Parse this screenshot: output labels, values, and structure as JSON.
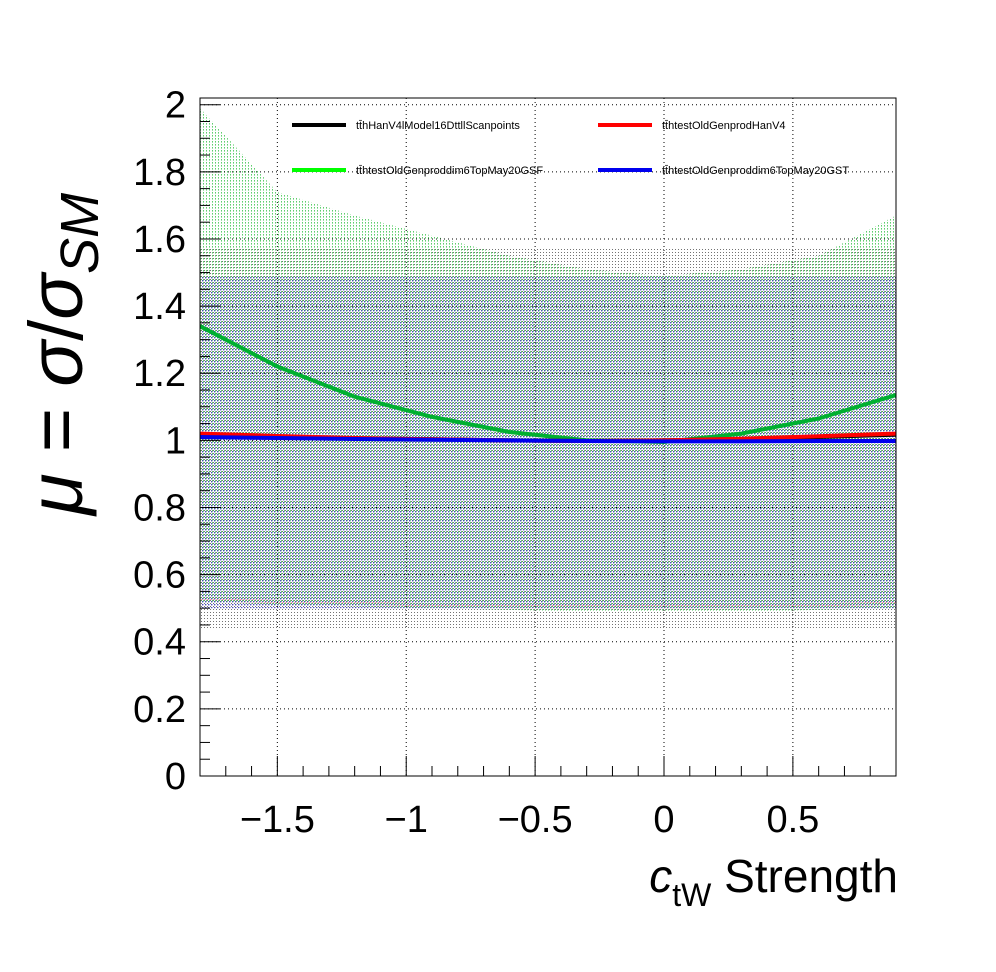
{
  "chart_data": {
    "type": "line",
    "xlabel": {
      "var": "c",
      "sub": "tW",
      "rest": " Strength"
    },
    "ylabel": {
      "mu": "μ",
      "eq": " = ",
      "sigma": "σ",
      "slash": "/",
      "sigma2": "σ",
      "sub": "SM"
    },
    "xlim": [
      -1.8,
      0.9
    ],
    "ylim": [
      0,
      2.02
    ],
    "x_ticks": [
      -1.5,
      -1,
      -0.5,
      0,
      0.5
    ],
    "x_tick_labels": [
      "−1.5",
      "−1",
      "−0.5",
      "0",
      "0.5"
    ],
    "y_ticks": [
      0,
      0.2,
      0.4,
      0.6,
      0.8,
      1,
      1.2,
      1.4,
      1.6,
      1.8,
      2
    ],
    "y_tick_labels": [
      "0",
      "0.2",
      "0.4",
      "0.6",
      "0.8",
      "1",
      "1.2",
      "1.4",
      "1.6",
      "1.8",
      "2"
    ],
    "grid": true,
    "legend_position": "top",
    "series": [
      {
        "name": "tt̄hHanV4lModel16DttllScanpoints",
        "color": "#000000",
        "x": [
          -1.8,
          -1.5,
          -1.2,
          -0.9,
          -0.6,
          -0.3,
          0,
          0.3,
          0.6,
          0.9
        ],
        "y": [
          1.015,
          1.01,
          1.006,
          1.003,
          1.0,
          0.998,
          1.0,
          1.004,
          1.01,
          1.017
        ],
        "band_low": [
          0.44,
          0.44,
          0.44,
          0.44,
          0.44,
          0.44,
          0.44,
          0.44,
          0.44,
          0.44
        ],
        "band_high": [
          1.57,
          1.57,
          1.57,
          1.57,
          1.57,
          1.57,
          1.57,
          1.57,
          1.57,
          1.57
        ],
        "band_color": "#000000"
      },
      {
        "name": "tt̄htestOldGenprodHanV4",
        "color": "#ff0000",
        "x": [
          -1.8,
          -1.5,
          -1.2,
          -0.9,
          -0.6,
          -0.3,
          0,
          0.3,
          0.6,
          0.9
        ],
        "y": [
          1.02,
          1.013,
          1.007,
          1.003,
          1.0,
          0.998,
          1.0,
          1.005,
          1.012,
          1.02
        ],
        "band_low": [
          0.52,
          0.515,
          0.51,
          0.505,
          0.5,
          0.5,
          0.5,
          0.5,
          0.505,
          0.51
        ],
        "band_high": [
          0.53,
          0.525,
          0.52,
          0.515,
          0.51,
          0.51,
          0.51,
          0.51,
          0.515,
          0.52
        ],
        "band_color": "#ff8888"
      },
      {
        "name": "tt̄htestOldGenproddim6TopMay20GSF",
        "color": "#00b030",
        "x": [
          -1.8,
          -1.5,
          -1.2,
          -0.9,
          -0.6,
          -0.3,
          0,
          0.3,
          0.6,
          0.9
        ],
        "y": [
          1.34,
          1.22,
          1.13,
          1.07,
          1.025,
          1.0,
          0.995,
          1.02,
          1.065,
          1.135
        ],
        "band_low": [
          0.52,
          0.51,
          0.505,
          0.5,
          0.495,
          0.49,
          0.49,
          0.49,
          0.495,
          0.5
        ],
        "band_high": [
          1.99,
          1.74,
          1.67,
          1.61,
          1.55,
          1.51,
          1.49,
          1.51,
          1.55,
          1.67
        ],
        "band_color": "#3cc84a"
      },
      {
        "name": "tt̄htestOldGenproddim6TopMay20GST",
        "color": "#0000ee",
        "x": [
          -1.8,
          -1.5,
          -1.2,
          -0.9,
          -0.6,
          -0.3,
          0,
          0.3,
          0.6,
          0.9
        ],
        "y": [
          1.01,
          1.007,
          1.004,
          1.002,
          1.0,
          0.998,
          0.997,
          0.997,
          0.998,
          0.998
        ],
        "band_low": [
          0.5,
          0.5,
          0.5,
          0.5,
          0.5,
          0.5,
          0.5,
          0.5,
          0.5,
          0.5
        ],
        "band_high": [
          1.49,
          1.49,
          1.49,
          1.49,
          1.49,
          1.49,
          1.49,
          1.49,
          1.49,
          1.49
        ],
        "band_color": "#2a2ab8"
      }
    ]
  }
}
